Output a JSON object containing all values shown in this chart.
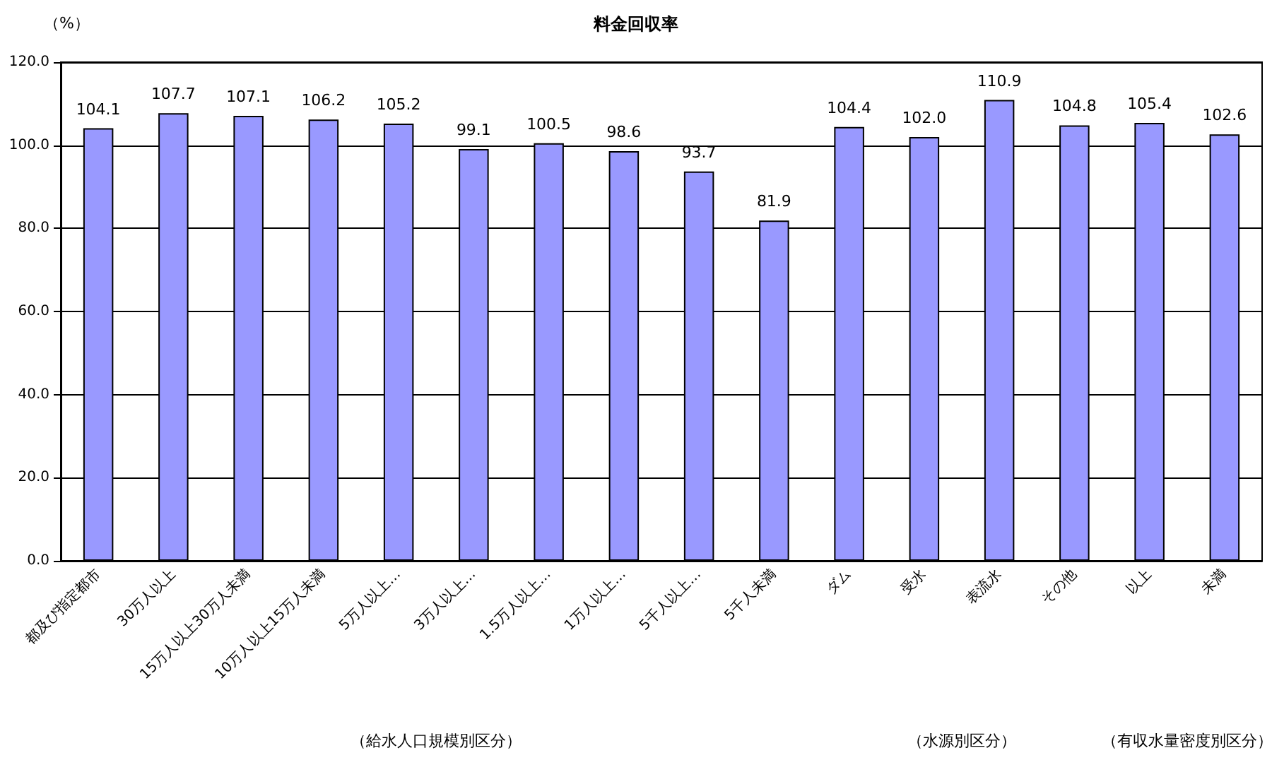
{
  "chart_data": {
    "type": "bar",
    "title": "料金回収率",
    "ylabel": "（%）",
    "categories": [
      "都及び指定都市",
      "30万人以上",
      "15万人以上30万人未満",
      "10万人以上15万人未満",
      "5万人以上…",
      "3万人以上…",
      "1.5万人以上…",
      "1万人以上…",
      "5千人以上…",
      "5千人未満",
      "ダム",
      "受水",
      "表流水",
      "その他",
      "以上",
      "未満"
    ],
    "values": [
      104.1,
      107.7,
      107.1,
      106.2,
      105.2,
      99.1,
      100.5,
      98.6,
      93.7,
      81.9,
      104.4,
      102.0,
      110.9,
      104.8,
      105.4,
      102.6
    ],
    "value_labels": [
      "104.1",
      "107.7",
      "107.1",
      "106.2",
      "105.2",
      "99.1",
      "100.5",
      "98.6",
      "93.7",
      "81.9",
      "104.4",
      "102.0",
      "110.9",
      "104.8",
      "105.4",
      "102.6"
    ],
    "color": "#9999ff",
    "ylim": [
      0,
      120
    ],
    "yticks": [
      {
        "value": 0,
        "label": "0.0"
      },
      {
        "value": 20,
        "label": "20.0"
      },
      {
        "value": 40,
        "label": "40.0"
      },
      {
        "value": 60,
        "label": "60.0"
      },
      {
        "value": 80,
        "label": "80.0"
      },
      {
        "value": 100,
        "label": "100.0"
      },
      {
        "value": 120,
        "label": "120.0"
      }
    ],
    "grid": "y",
    "annotations": [
      "（給水人口規模別区分）",
      "（水源別区分）",
      "（有収水量密度別区分）"
    ]
  }
}
